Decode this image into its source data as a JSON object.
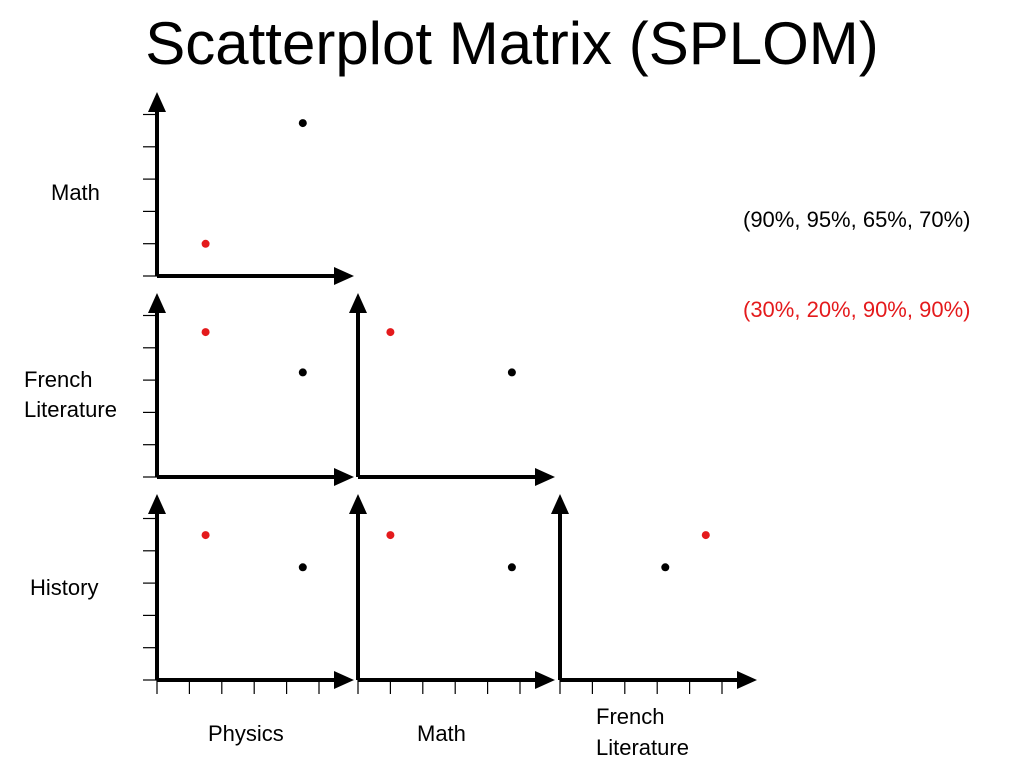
{
  "title": "Scatterplot Matrix (SPLOM)",
  "row_labels": {
    "math": "Math",
    "french_line1": "French",
    "french_line2": "Literature",
    "history": "History"
  },
  "column_labels": {
    "physics": "Physics",
    "math": "Math",
    "french_line1": "French",
    "french_line2": "Literature"
  },
  "legend": {
    "entry_1": "(90%, 95%, 65%, 70%)",
    "entry_2": "(30%, 20%, 90%, 90%)"
  },
  "colors": {
    "axis": "#000000",
    "record_1": "#000000",
    "record_2": "#e41a1c"
  },
  "chart_data": {
    "type": "scatter",
    "title": "Scatterplot Matrix (SPLOM)",
    "variables": [
      "Physics",
      "Math",
      "French Literature",
      "History"
    ],
    "records": [
      {
        "values": [
          90,
          95,
          65,
          70
        ],
        "color": "#000000",
        "label": "(90%, 95%, 65%, 70%)"
      },
      {
        "values": [
          30,
          20,
          90,
          90
        ],
        "color": "#e41a1c",
        "label": "(30%, 20%, 90%, 90%)"
      }
    ],
    "panels": [
      {
        "x": "Physics",
        "y": "Math",
        "xlabel": "Physics",
        "ylabel": "Math"
      },
      {
        "x": "Physics",
        "y": "French Literature",
        "xlabel": "Physics",
        "ylabel": "French Literature"
      },
      {
        "x": "Math",
        "y": "French Literature",
        "xlabel": "Math",
        "ylabel": "French Literature"
      },
      {
        "x": "Physics",
        "y": "History",
        "xlabel": "Physics",
        "ylabel": "History"
      },
      {
        "x": "Math",
        "y": "History",
        "xlabel": "Math",
        "ylabel": "History"
      },
      {
        "x": "French Literature",
        "y": "History",
        "xlabel": "French Literature",
        "ylabel": "History"
      }
    ],
    "axis_range": [
      0,
      100
    ],
    "grid": false
  }
}
